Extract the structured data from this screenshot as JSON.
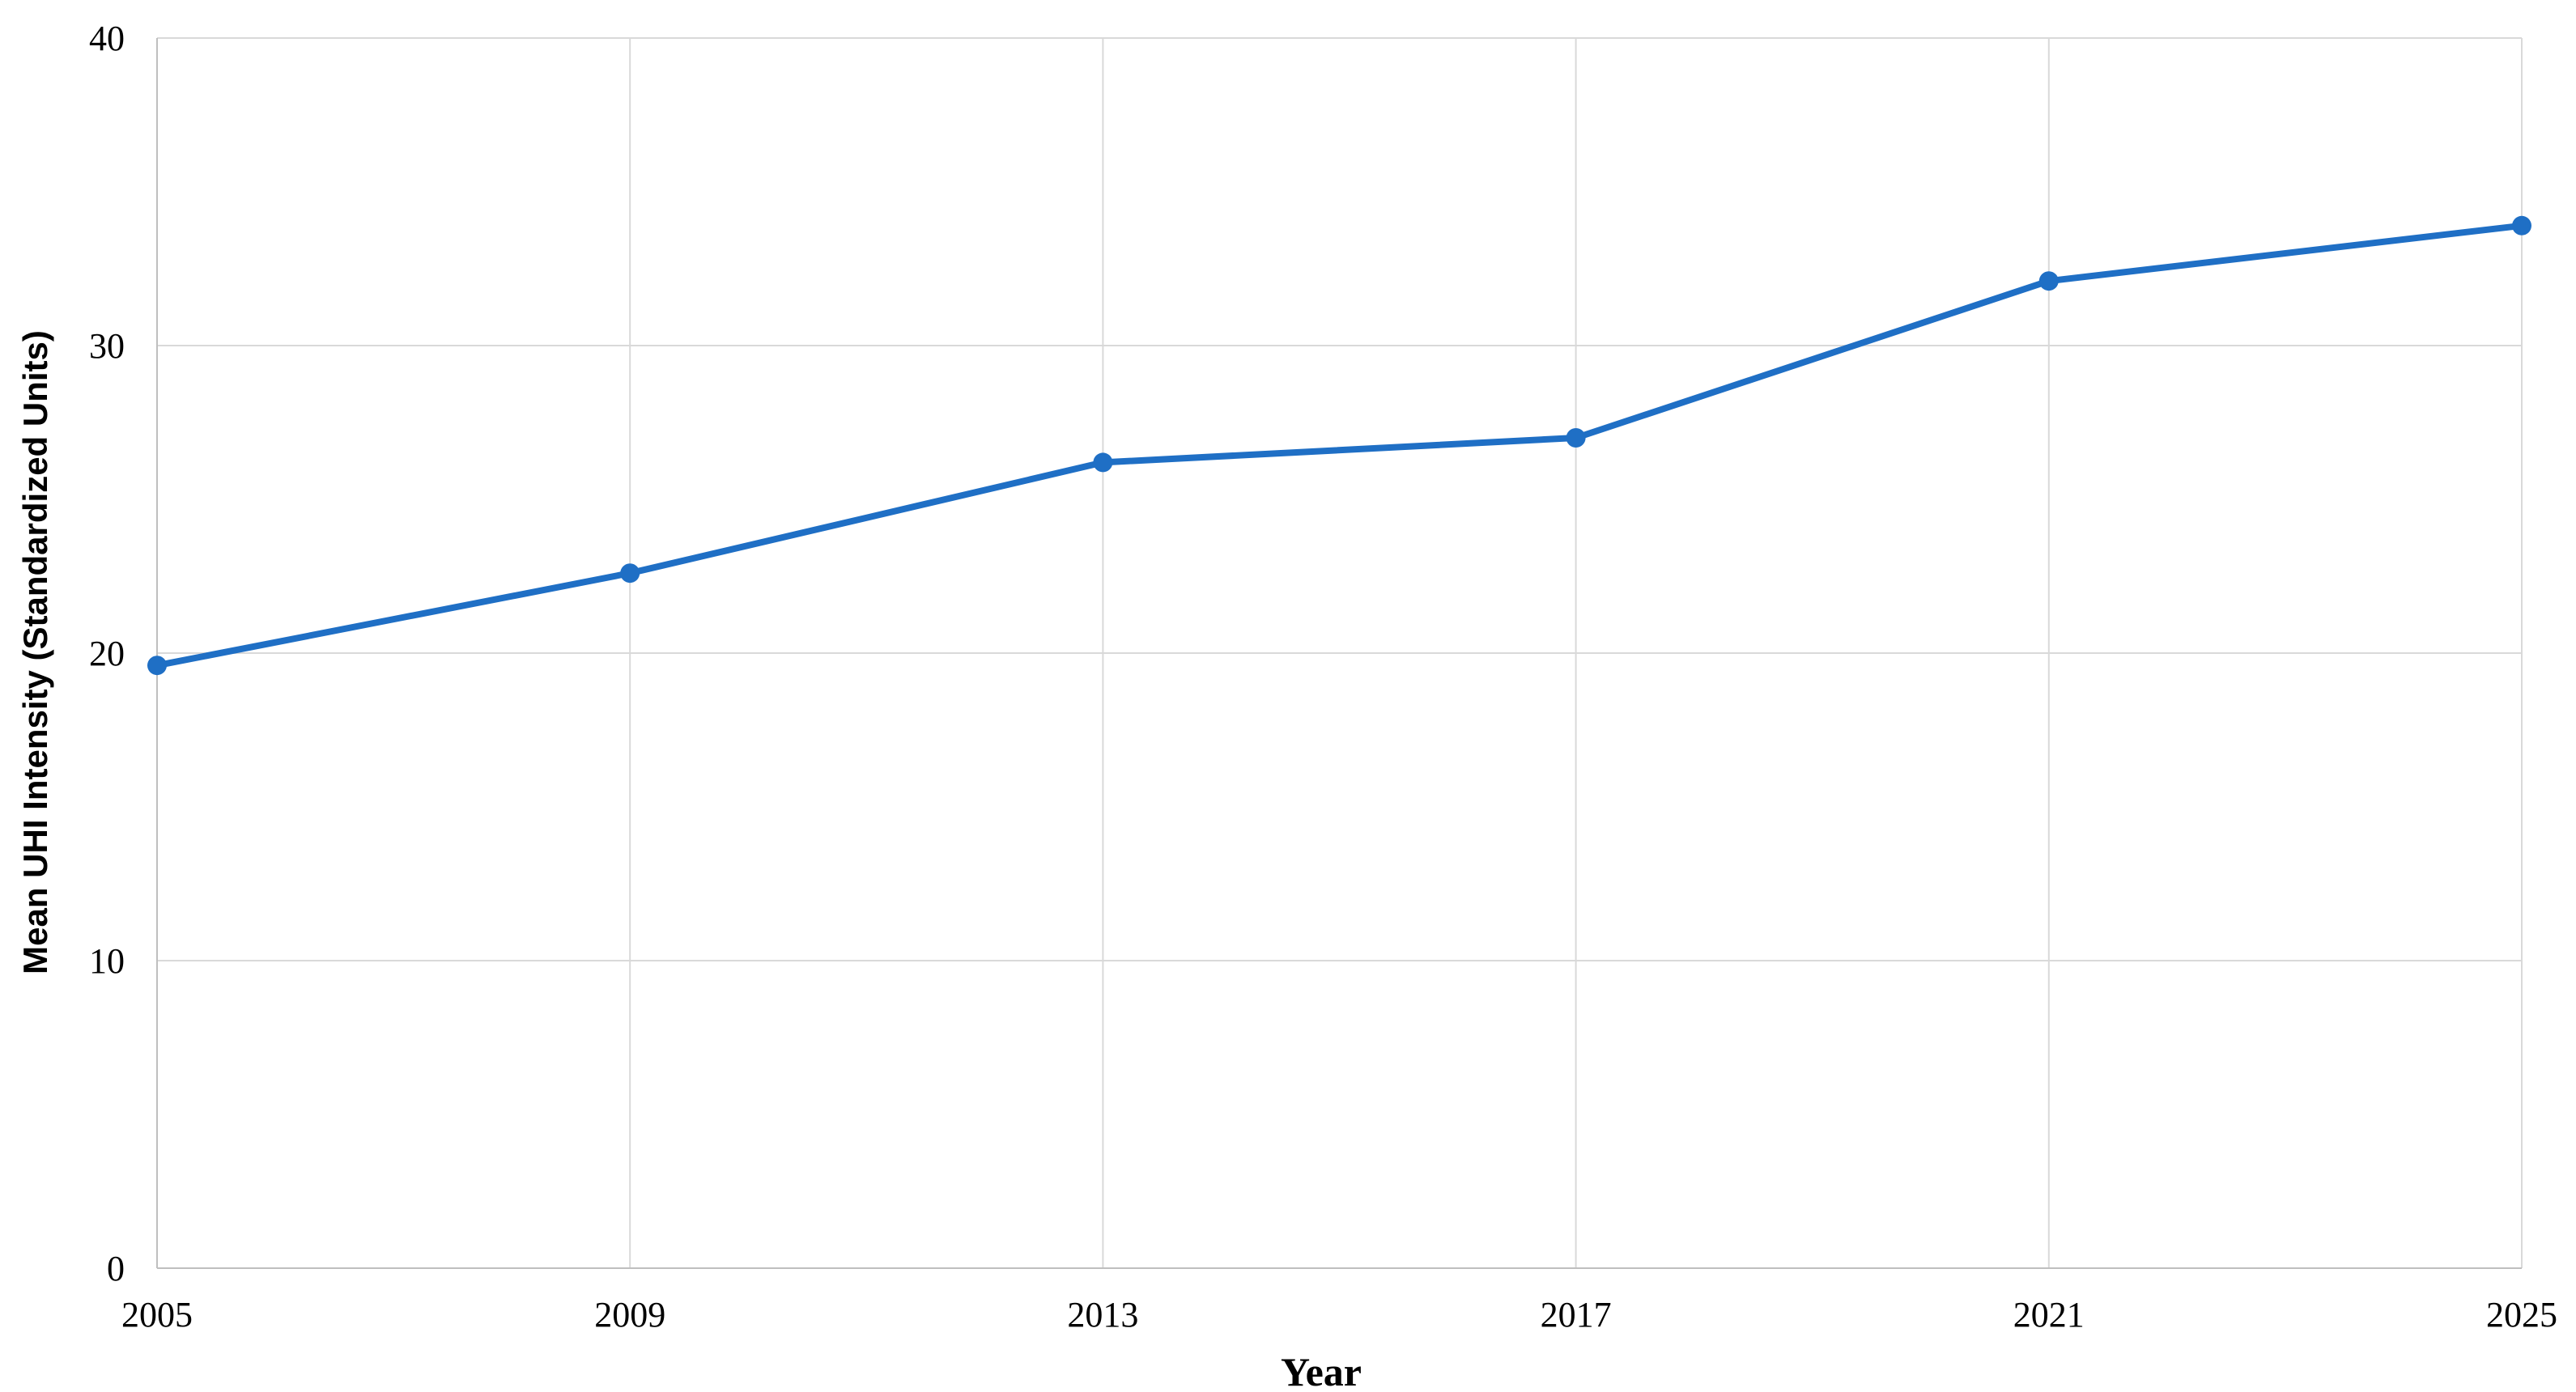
{
  "chart_data": {
    "type": "line",
    "x_label": "Year",
    "y_label": "Mean UHI Intensity (Standardized Units)",
    "x": [
      2005,
      2009,
      2013,
      2017,
      2021,
      2025
    ],
    "series": [
      {
        "color": "#1f6fc5",
        "values": [
          19.6,
          22.6,
          26.2,
          27.0,
          32.1,
          33.9
        ]
      }
    ],
    "xlim": [
      2005,
      2025
    ],
    "xticks": [
      2005,
      2009,
      2013,
      2017,
      2021,
      2025
    ],
    "ylim": [
      0,
      40
    ],
    "yticks": [
      0,
      10,
      20,
      30,
      40
    ],
    "grid": true,
    "markers": true
  }
}
